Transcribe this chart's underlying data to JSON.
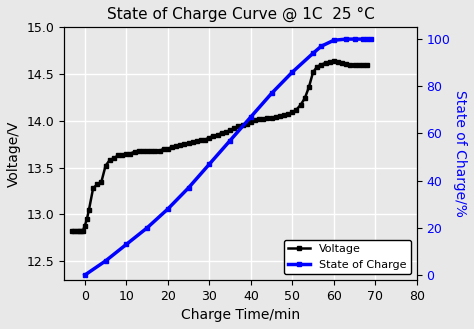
{
  "title": "State of Charge Curve @ 1C  25 °C",
  "xlabel": "Charge Time/min",
  "ylabel_left": "Voltage/V",
  "ylabel_right": "State of Charge/%",
  "xlim": [
    -5,
    80
  ],
  "ylim_left": [
    12.3,
    15.0
  ],
  "ylim_right": [
    -2,
    105
  ],
  "xticks": [
    0,
    10,
    20,
    30,
    40,
    50,
    60,
    70,
    80
  ],
  "yticks_left": [
    12.5,
    13.0,
    13.5,
    14.0,
    14.5,
    15.0
  ],
  "yticks_right": [
    0,
    20,
    40,
    60,
    80,
    100
  ],
  "bg_color": "#e8e8e8",
  "grid_color": "#ffffff",
  "voltage_color": "#000000",
  "soc_color": "#0000ff",
  "voltage_x": [
    -3.0,
    -2.5,
    -2.0,
    -1.5,
    -1.0,
    -0.5,
    0.0,
    0.5,
    1.0,
    2.0,
    3.0,
    4.0,
    5.0,
    6.0,
    7.0,
    8.0,
    9.0,
    10.0,
    11.0,
    12.0,
    13.0,
    14.0,
    15.0,
    16.0,
    17.0,
    18.0,
    19.0,
    20.0,
    21.0,
    22.0,
    23.0,
    24.0,
    25.0,
    26.0,
    27.0,
    28.0,
    29.0,
    30.0,
    31.0,
    32.0,
    33.0,
    34.0,
    35.0,
    36.0,
    37.0,
    38.0,
    39.0,
    40.0,
    41.0,
    42.0,
    43.0,
    44.0,
    45.0,
    46.0,
    47.0,
    48.0,
    49.0,
    50.0,
    51.0,
    52.0,
    53.0,
    54.0,
    55.0,
    56.0,
    57.0,
    58.0,
    59.0,
    60.0,
    61.0,
    62.0,
    63.0,
    64.0,
    65.0,
    66.0,
    67.0,
    68.0
  ],
  "voltage_y": [
    12.82,
    12.82,
    12.82,
    12.82,
    12.82,
    12.82,
    12.88,
    12.95,
    13.05,
    13.28,
    13.32,
    13.35,
    13.52,
    13.58,
    13.6,
    13.63,
    13.63,
    13.65,
    13.65,
    13.67,
    13.68,
    13.68,
    13.68,
    13.68,
    13.68,
    13.68,
    13.7,
    13.7,
    13.72,
    13.73,
    13.74,
    13.75,
    13.76,
    13.77,
    13.78,
    13.79,
    13.8,
    13.82,
    13.84,
    13.85,
    13.87,
    13.88,
    13.9,
    13.92,
    13.94,
    13.96,
    13.97,
    13.99,
    14.01,
    14.02,
    14.02,
    14.03,
    14.03,
    14.04,
    14.05,
    14.06,
    14.07,
    14.09,
    14.12,
    14.17,
    14.24,
    14.36,
    14.52,
    14.58,
    14.6,
    14.62,
    14.63,
    14.64,
    14.63,
    14.62,
    14.61,
    14.6,
    14.6,
    14.6,
    14.6,
    14.6
  ],
  "soc_x": [
    0.0,
    5.0,
    10.0,
    15.0,
    20.0,
    25.0,
    30.0,
    35.0,
    40.0,
    45.0,
    50.0,
    55.0,
    57.0,
    60.0,
    63.0,
    65.0,
    67.0,
    68.0,
    69.0
  ],
  "soc_y": [
    0.0,
    6.0,
    13.0,
    20.0,
    28.0,
    37.0,
    47.0,
    57.0,
    67.0,
    77.0,
    86.0,
    94.0,
    97.0,
    99.5,
    100.0,
    100.0,
    100.0,
    100.0,
    100.0
  ]
}
